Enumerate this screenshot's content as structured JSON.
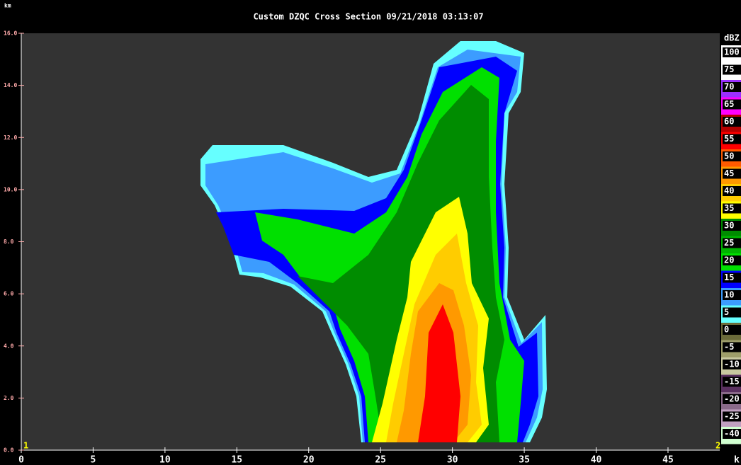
{
  "chart_data": {
    "type": "cross_section",
    "title": "Custom    DZQC Cross Section 09/21/2018 03:13:07",
    "y_label": "km",
    "x_label": "k",
    "start_marker": "1",
    "end_marker": "2",
    "xlim": [
      0,
      48.6
    ],
    "ylim": [
      0,
      16
    ],
    "xticks": [
      0,
      5,
      10,
      15,
      20,
      25,
      30,
      35,
      40,
      45
    ],
    "yticks": [
      {
        "value": 0,
        "label": "0.0"
      },
      {
        "value": 2,
        "label": "2.0"
      },
      {
        "value": 4,
        "label": "4.0"
      },
      {
        "value": 6,
        "label": "6.0"
      },
      {
        "value": 8,
        "label": "8.0"
      },
      {
        "value": 10,
        "label": "10.0"
      },
      {
        "value": 12,
        "label": "12.0"
      },
      {
        "value": 14,
        "label": "14.0"
      },
      {
        "value": 16,
        "label": "16.0"
      }
    ],
    "colorbar": {
      "label": "dBZ",
      "values": [
        100,
        75,
        70,
        65,
        60,
        55,
        50,
        45,
        40,
        35,
        30,
        25,
        20,
        15,
        10,
        5,
        0,
        -5,
        -10,
        -15,
        -20,
        -25,
        -40
      ],
      "colors": [
        "#ffffff",
        "#ffffff",
        "#9b30ff",
        "#ff00ff",
        "#b40000",
        "#ff0000",
        "#ff5a00",
        "#ff9900",
        "#ffcc00",
        "#ffff00",
        "#008c00",
        "#00b400",
        "#00e000",
        "#0000ff",
        "#3c9cff",
        "#66ffff",
        "#6b6b3a",
        "#9e9e6a",
        "#c8c8a0",
        "#5a3060",
        "#8a6a8a",
        "#c0a0c0",
        "#d0ffd0"
      ]
    }
  }
}
